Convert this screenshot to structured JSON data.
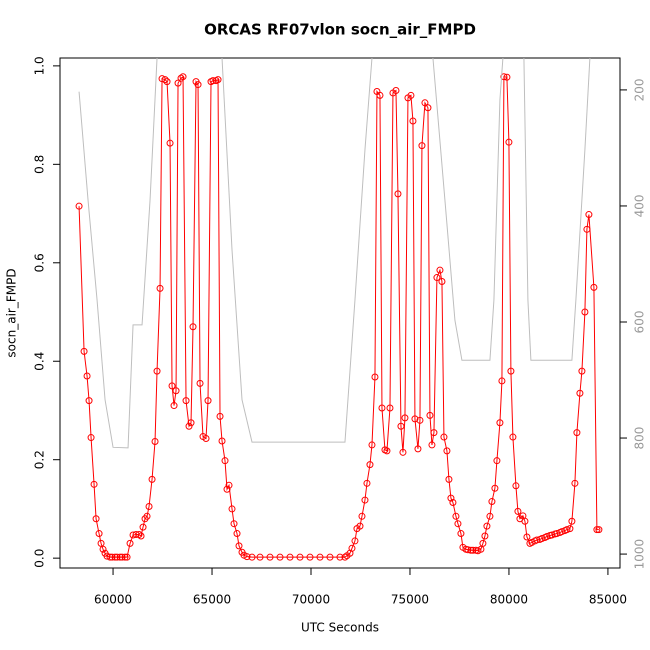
{
  "chart_data": {
    "type": "line",
    "title": "ORCAS RF07vlon socn_air_FMPD",
    "x_label": "UTC Seconds",
    "y_label": "socn_air_FMPD",
    "xlim": [
      57320,
      85610
    ],
    "ylim": [
      -0.02,
      1.016
    ],
    "y2lim": [
      1024,
      145
    ],
    "xticks": [
      60000,
      65000,
      70000,
      75000,
      80000,
      85000
    ],
    "yticks": [
      {
        "value": 0,
        "label": "0.0"
      },
      0.2,
      0.4,
      0.6,
      0.8,
      {
        "value": 1,
        "label": "1.0"
      }
    ],
    "y2ticks": [
      200,
      400,
      600,
      800,
      1000
    ],
    "series": [
      {
        "color": "#ff0000",
        "marker": "circle",
        "x": [
          58283,
          58536,
          58687,
          58788,
          58889,
          59041,
          59142,
          59293,
          59394,
          59495,
          59596,
          59697,
          59849,
          59950,
          60101,
          60202,
          60354,
          60455,
          60606,
          60707,
          60859,
          61010,
          61162,
          61313,
          61414,
          61515,
          61616,
          61717,
          61818,
          61970,
          62121,
          62222,
          62374,
          62475,
          62626,
          62727,
          62879,
          62980,
          63081,
          63182,
          63283,
          63434,
          63535,
          63687,
          63838,
          63939,
          64040,
          64192,
          64293,
          64394,
          64545,
          64697,
          64798,
          64949,
          65050,
          65202,
          65303,
          65404,
          65505,
          65656,
          65757,
          65858,
          66010,
          66111,
          66262,
          66363,
          66515,
          66616,
          66767,
          67020,
          67424,
          67929,
          68434,
          68939,
          69444,
          69949,
          70454,
          70959,
          71464,
          71716,
          71817,
          71969,
          72070,
          72221,
          72322,
          72474,
          72575,
          72726,
          72827,
          72979,
          73080,
          73231,
          73332,
          73484,
          73585,
          73736,
          73837,
          73989,
          74140,
          74292,
          74393,
          74544,
          74645,
          74746,
          74898,
          75049,
          75150,
          75251,
          75403,
          75504,
          75605,
          75756,
          75908,
          76009,
          76110,
          76211,
          76362,
          76514,
          76615,
          76716,
          76867,
          76968,
          77069,
          77170,
          77322,
          77423,
          77574,
          77675,
          77827,
          77928,
          78079,
          78180,
          78332,
          78433,
          78584,
          78685,
          78786,
          78887,
          79039,
          79140,
          79291,
          79392,
          79544,
          79645,
          79746,
          79897,
          79998,
          80099,
          80200,
          80352,
          80453,
          80554,
          80706,
          80807,
          80908,
          81059,
          81160,
          81312,
          81413,
          81565,
          81666,
          81817,
          81918,
          82069,
          82170,
          82322,
          82423,
          82575,
          82676,
          82827,
          82928,
          83080,
          83180,
          83332,
          83433,
          83585,
          83686,
          83837,
          83938,
          84039,
          84292,
          84443,
          84544
        ],
        "values": [
          0.715,
          0.42,
          0.37,
          0.32,
          0.245,
          0.15,
          0.08,
          0.05,
          0.03,
          0.018,
          0.01,
          0.004,
          0.002,
          0.002,
          0.002,
          0.002,
          0.002,
          0.002,
          0.002,
          0.002,
          0.03,
          0.047,
          0.048,
          0.048,
          0.045,
          0.063,
          0.08,
          0.085,
          0.105,
          0.16,
          0.237,
          0.38,
          0.548,
          0.974,
          0.972,
          0.968,
          0.843,
          0.35,
          0.31,
          0.34,
          0.965,
          0.975,
          0.978,
          0.32,
          0.268,
          0.275,
          0.47,
          0.968,
          0.962,
          0.355,
          0.247,
          0.243,
          0.32,
          0.968,
          0.97,
          0.97,
          0.972,
          0.288,
          0.238,
          0.198,
          0.14,
          0.148,
          0.1,
          0.07,
          0.05,
          0.025,
          0.012,
          0.006,
          0.003,
          0.002,
          0.002,
          0.002,
          0.002,
          0.002,
          0.002,
          0.002,
          0.002,
          0.002,
          0.002,
          0.002,
          0.005,
          0.01,
          0.02,
          0.035,
          0.06,
          0.065,
          0.085,
          0.118,
          0.152,
          0.19,
          0.23,
          0.368,
          0.948,
          0.94,
          0.305,
          0.22,
          0.218,
          0.305,
          0.945,
          0.95,
          0.74,
          0.268,
          0.215,
          0.285,
          0.935,
          0.94,
          0.888,
          0.283,
          0.222,
          0.28,
          0.838,
          0.925,
          0.915,
          0.29,
          0.23,
          0.255,
          0.57,
          0.585,
          0.562,
          0.246,
          0.218,
          0.16,
          0.122,
          0.113,
          0.085,
          0.07,
          0.05,
          0.022,
          0.018,
          0.017,
          0.016,
          0.016,
          0.016,
          0.015,
          0.018,
          0.03,
          0.045,
          0.065,
          0.085,
          0.115,
          0.142,
          0.198,
          0.275,
          0.36,
          0.978,
          0.977,
          0.845,
          0.38,
          0.246,
          0.147,
          0.095,
          0.08,
          0.086,
          0.075,
          0.043,
          0.03,
          0.032,
          0.035,
          0.037,
          0.038,
          0.04,
          0.042,
          0.044,
          0.046,
          0.047,
          0.049,
          0.05,
          0.052,
          0.054,
          0.056,
          0.058,
          0.06,
          0.075,
          0.152,
          0.255,
          0.335,
          0.38,
          0.5,
          0.668,
          0.698,
          0.55,
          0.058,
          0.058
        ]
      },
      {
        "color": "#bebebe",
        "axis": "y2",
        "x": [
          58283,
          58737,
          59192,
          59596,
          60000,
          60758,
          61010,
          61465,
          61869,
          62222,
          62374,
          65404,
          65505,
          66010,
          66515,
          67020,
          71716,
          72221,
          72726,
          73080,
          73231,
          76009,
          76160,
          76766,
          77271,
          77625,
          79039,
          79241,
          79544,
          79695,
          79796,
          80655,
          80756,
          80958,
          81109,
          83180,
          83382,
          83837,
          84089,
          84190
        ],
        "values": [
          203,
          390,
          562,
          734,
          816,
          817,
          605,
          605,
          390,
          145,
          97,
          97,
          145,
          476,
          734,
          807,
          807,
          562,
          303,
          145,
          97,
          97,
          145,
          390,
          597,
          666,
          666,
          562,
          217,
          145,
          97,
          97,
          145,
          562,
          666,
          666,
          562,
          303,
          145,
          97
        ]
      }
    ]
  }
}
